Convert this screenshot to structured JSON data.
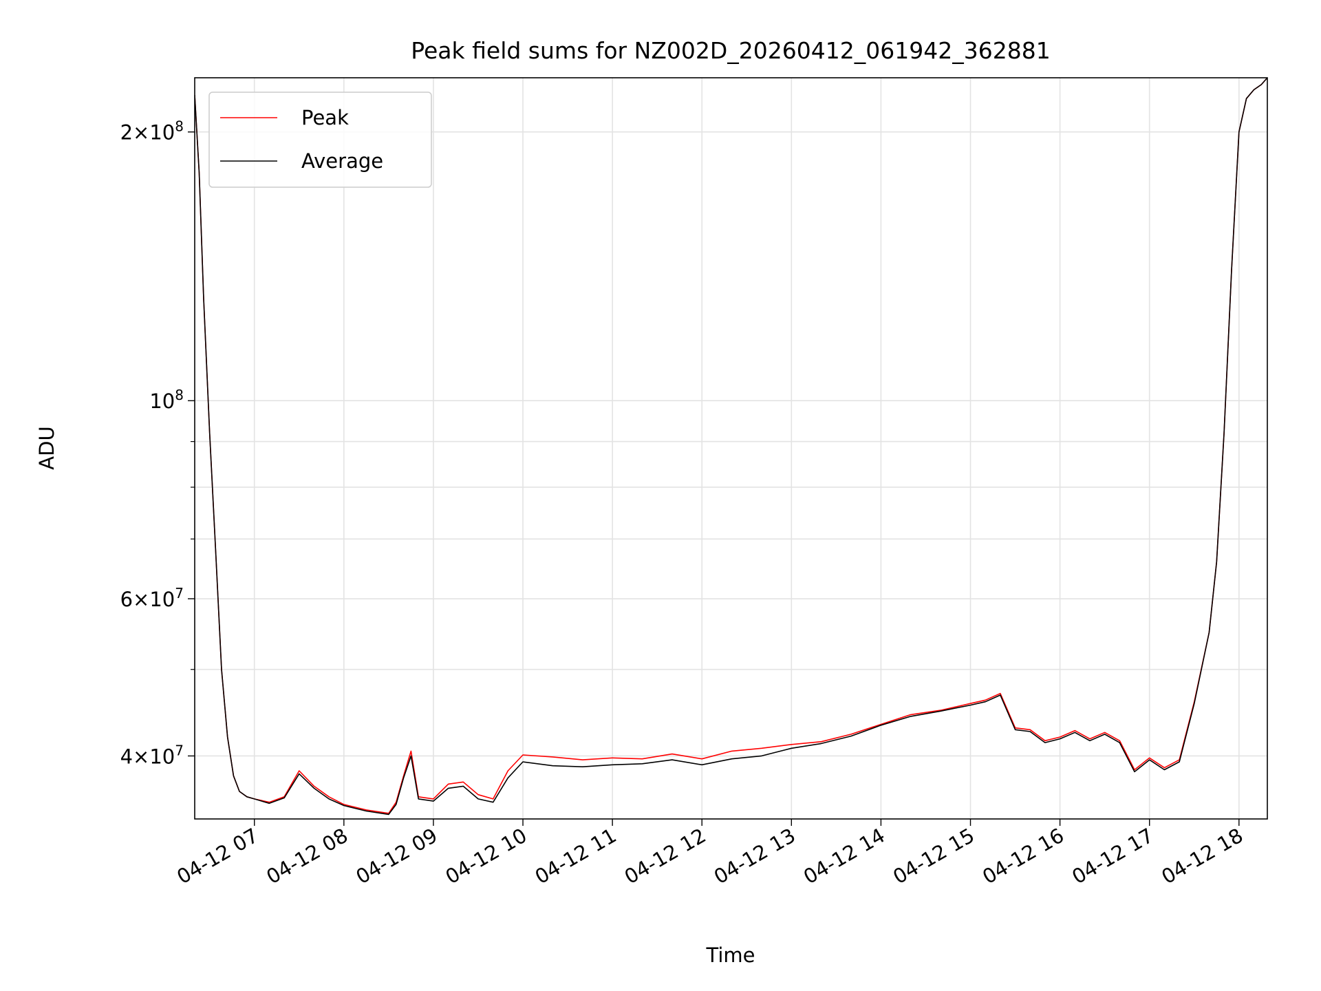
{
  "chart_data": {
    "type": "line",
    "title": "Peak field sums for NZ002D_20260412_061942_362881",
    "xlabel": "Time",
    "ylabel": "ADU",
    "yscale": "log",
    "grid": true,
    "legend_position": "top-left",
    "xlim": [
      "2026-04-12 06:20",
      "2026-04-12 18:19"
    ],
    "ylim": [
      34000000,
      230000000
    ],
    "x_ticks": [
      {
        "value": "2026-04-12 07:00",
        "label": "04-12 07"
      },
      {
        "value": "2026-04-12 08:00",
        "label": "04-12 08"
      },
      {
        "value": "2026-04-12 09:00",
        "label": "04-12 09"
      },
      {
        "value": "2026-04-12 10:00",
        "label": "04-12 10"
      },
      {
        "value": "2026-04-12 11:00",
        "label": "04-12 11"
      },
      {
        "value": "2026-04-12 12:00",
        "label": "04-12 12"
      },
      {
        "value": "2026-04-12 13:00",
        "label": "04-12 13"
      },
      {
        "value": "2026-04-12 14:00",
        "label": "04-12 14"
      },
      {
        "value": "2026-04-12 15:00",
        "label": "04-12 15"
      },
      {
        "value": "2026-04-12 16:00",
        "label": "04-12 16"
      },
      {
        "value": "2026-04-12 17:00",
        "label": "04-12 17"
      },
      {
        "value": "2026-04-12 18:00",
        "label": "04-12 18"
      }
    ],
    "y_major_ticks": [
      {
        "value": 40000000,
        "mant": "4",
        "exp": "7"
      },
      {
        "value": 60000000,
        "mant": "6",
        "exp": "7"
      },
      {
        "value": 100000000,
        "mant": "",
        "exp": "8"
      },
      {
        "value": 200000000,
        "mant": "2",
        "exp": "8"
      }
    ],
    "y_minor_ticks": [
      50000000,
      70000000,
      80000000,
      90000000
    ],
    "series": [
      {
        "name": "Peak",
        "color": "#ff0000",
        "x": [
          "2026-04-12 06:20",
          "2026-04-12 06:23",
          "2026-04-12 06:26",
          "2026-04-12 06:30",
          "2026-04-12 06:34",
          "2026-04-12 06:38",
          "2026-04-12 06:42",
          "2026-04-12 06:46",
          "2026-04-12 06:50",
          "2026-04-12 06:55",
          "2026-04-12 07:00",
          "2026-04-12 07:10",
          "2026-04-12 07:20",
          "2026-04-12 07:30",
          "2026-04-12 07:40",
          "2026-04-12 07:50",
          "2026-04-12 08:00",
          "2026-04-12 08:15",
          "2026-04-12 08:30",
          "2026-04-12 08:35",
          "2026-04-12 08:40",
          "2026-04-12 08:45",
          "2026-04-12 08:50",
          "2026-04-12 09:00",
          "2026-04-12 09:10",
          "2026-04-12 09:20",
          "2026-04-12 09:30",
          "2026-04-12 09:40",
          "2026-04-12 09:50",
          "2026-04-12 10:00",
          "2026-04-12 10:20",
          "2026-04-12 10:40",
          "2026-04-12 11:00",
          "2026-04-12 11:20",
          "2026-04-12 11:40",
          "2026-04-12 12:00",
          "2026-04-12 12:20",
          "2026-04-12 12:40",
          "2026-04-12 13:00",
          "2026-04-12 13:20",
          "2026-04-12 13:40",
          "2026-04-12 14:00",
          "2026-04-12 14:20",
          "2026-04-12 14:40",
          "2026-04-12 15:00",
          "2026-04-12 15:10",
          "2026-04-12 15:20",
          "2026-04-12 15:30",
          "2026-04-12 15:40",
          "2026-04-12 15:50",
          "2026-04-12 16:00",
          "2026-04-12 16:10",
          "2026-04-12 16:20",
          "2026-04-12 16:30",
          "2026-04-12 16:40",
          "2026-04-12 16:50",
          "2026-04-12 17:00",
          "2026-04-12 17:10",
          "2026-04-12 17:20",
          "2026-04-12 17:30",
          "2026-04-12 17:40",
          "2026-04-12 17:45",
          "2026-04-12 17:50",
          "2026-04-12 17:55",
          "2026-04-12 18:00",
          "2026-04-12 18:05",
          "2026-04-12 18:10",
          "2026-04-12 18:15",
          "2026-04-12 18:19"
        ],
        "y": [
          220000000,
          180000000,
          130000000,
          92000000,
          68000000,
          50000000,
          42000000,
          38000000,
          36500000,
          36000000,
          35800000,
          35500000,
          36000000,
          38500000,
          37000000,
          36000000,
          35300000,
          34800000,
          34500000,
          35500000,
          38000000,
          40500000,
          36000000,
          35800000,
          37200000,
          37400000,
          36200000,
          35800000,
          38500000,
          40100000,
          39900000,
          39600000,
          39800000,
          39700000,
          40200000,
          39700000,
          40500000,
          40800000,
          41200000,
          41500000,
          42300000,
          43400000,
          44500000,
          45000000,
          45800000,
          46200000,
          47000000,
          43000000,
          42800000,
          41600000,
          42000000,
          42700000,
          41800000,
          42500000,
          41600000,
          38600000,
          39800000,
          38800000,
          39600000,
          46000000,
          55000000,
          66000000,
          92000000,
          140000000,
          200000000,
          218000000,
          223000000,
          226000000,
          230000000
        ]
      },
      {
        "name": "Average",
        "color": "#000000",
        "x": [
          "2026-04-12 06:20",
          "2026-04-12 06:23",
          "2026-04-12 06:26",
          "2026-04-12 06:30",
          "2026-04-12 06:34",
          "2026-04-12 06:38",
          "2026-04-12 06:42",
          "2026-04-12 06:46",
          "2026-04-12 06:50",
          "2026-04-12 06:55",
          "2026-04-12 07:00",
          "2026-04-12 07:10",
          "2026-04-12 07:20",
          "2026-04-12 07:30",
          "2026-04-12 07:40",
          "2026-04-12 07:50",
          "2026-04-12 08:00",
          "2026-04-12 08:15",
          "2026-04-12 08:30",
          "2026-04-12 08:35",
          "2026-04-12 08:40",
          "2026-04-12 08:45",
          "2026-04-12 08:50",
          "2026-04-12 09:00",
          "2026-04-12 09:10",
          "2026-04-12 09:20",
          "2026-04-12 09:30",
          "2026-04-12 09:40",
          "2026-04-12 09:50",
          "2026-04-12 10:00",
          "2026-04-12 10:20",
          "2026-04-12 10:40",
          "2026-04-12 11:00",
          "2026-04-12 11:20",
          "2026-04-12 11:40",
          "2026-04-12 12:00",
          "2026-04-12 12:20",
          "2026-04-12 12:40",
          "2026-04-12 13:00",
          "2026-04-12 13:20",
          "2026-04-12 13:40",
          "2026-04-12 14:00",
          "2026-04-12 14:20",
          "2026-04-12 14:40",
          "2026-04-12 15:00",
          "2026-04-12 15:10",
          "2026-04-12 15:20",
          "2026-04-12 15:30",
          "2026-04-12 15:40",
          "2026-04-12 15:50",
          "2026-04-12 16:00",
          "2026-04-12 16:10",
          "2026-04-12 16:20",
          "2026-04-12 16:30",
          "2026-04-12 16:40",
          "2026-04-12 16:50",
          "2026-04-12 17:00",
          "2026-04-12 17:10",
          "2026-04-12 17:20",
          "2026-04-12 17:30",
          "2026-04-12 17:40",
          "2026-04-12 17:45",
          "2026-04-12 17:50",
          "2026-04-12 17:55",
          "2026-04-12 18:00",
          "2026-04-12 18:05",
          "2026-04-12 18:10",
          "2026-04-12 18:15",
          "2026-04-12 18:19"
        ],
        "y": [
          220000000,
          180000000,
          130000000,
          92000000,
          68000000,
          50000000,
          42000000,
          38000000,
          36500000,
          36000000,
          35800000,
          35400000,
          35900000,
          38200000,
          36800000,
          35800000,
          35200000,
          34700000,
          34400000,
          35300000,
          37800000,
          40000000,
          35800000,
          35600000,
          36800000,
          37000000,
          35800000,
          35500000,
          37800000,
          39400000,
          39000000,
          38900000,
          39100000,
          39200000,
          39600000,
          39100000,
          39700000,
          40000000,
          40800000,
          41300000,
          42100000,
          43300000,
          44300000,
          44900000,
          45600000,
          46000000,
          46800000,
          42800000,
          42600000,
          41400000,
          41800000,
          42500000,
          41600000,
          42300000,
          41400000,
          38400000,
          39600000,
          38600000,
          39400000,
          45800000,
          55000000,
          66000000,
          92000000,
          140000000,
          200000000,
          218000000,
          223000000,
          226000000,
          230000000
        ]
      }
    ]
  }
}
